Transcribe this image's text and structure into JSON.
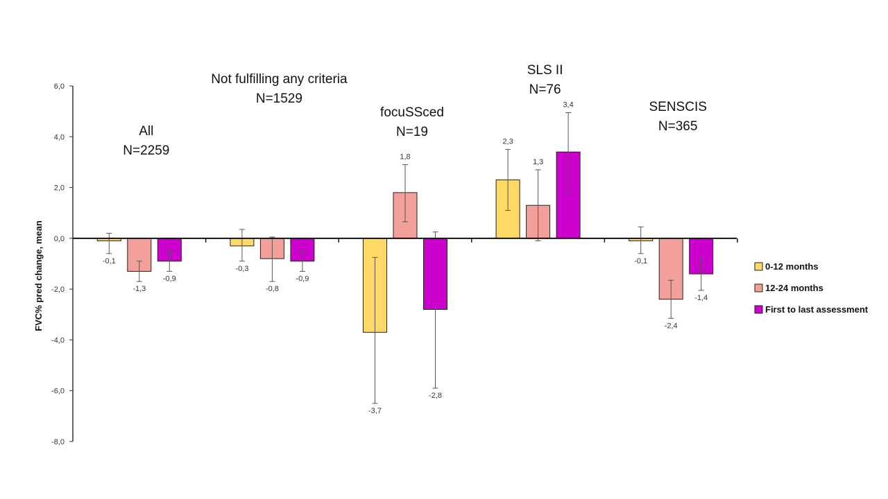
{
  "chart_data": {
    "type": "bar",
    "ylabel": "FVC% pred change, mean",
    "ylim": [
      -8,
      6
    ],
    "yticks": [
      6,
      4,
      2,
      0,
      -2,
      -4,
      -6,
      -8
    ],
    "ytick_labels": [
      "6,0",
      "4,0",
      "2,0",
      "0,0",
      "-2,0",
      "-4,0",
      "-6,0",
      "-8,0"
    ],
    "categories": [
      {
        "name": "All",
        "n": "N=2259"
      },
      {
        "name": "Not fulfilling  any criteria",
        "n": "N=1529"
      },
      {
        "name": "focuSSced",
        "n": "N=19"
      },
      {
        "name": "SLS II",
        "n": "N=76"
      },
      {
        "name": "SENSCIS",
        "n": "N=365"
      }
    ],
    "series": [
      {
        "name": "0-12 months",
        "color": "#FFD966",
        "values": [
          -0.1,
          -0.3,
          -3.7,
          2.3,
          -0.1
        ],
        "labels": [
          "-0,1",
          "-0,3",
          "-3,7",
          "2,3",
          "-0,1"
        ],
        "err_low": [
          -0.6,
          -0.9,
          -6.5,
          1.1,
          -0.6
        ],
        "err_high": [
          0.2,
          0.35,
          -0.75,
          3.5,
          0.45
        ]
      },
      {
        "name": "12-24 months",
        "color": "#F4A09A",
        "values": [
          -1.3,
          -0.8,
          1.8,
          1.3,
          -2.4
        ],
        "labels": [
          "-1,3",
          "-0,8",
          "1,8",
          "1,3",
          "-2,4"
        ],
        "err_low": [
          -1.7,
          -1.7,
          0.65,
          -0.1,
          -3.15
        ],
        "err_high": [
          -0.9,
          0.05,
          2.9,
          2.7,
          -1.65
        ]
      },
      {
        "name": "First to last assessment",
        "color": "#CC00CC",
        "values": [
          -0.9,
          -0.9,
          -2.8,
          3.4,
          -1.4
        ],
        "labels": [
          "-0,9",
          "-0,9",
          "-2,8",
          "3,4",
          "-1,4"
        ],
        "err_low": [
          -1.3,
          -1.3,
          -5.9,
          1.8,
          -2.05
        ],
        "err_high": [
          -0.5,
          -0.5,
          0.25,
          4.95,
          -0.75
        ]
      }
    ]
  }
}
